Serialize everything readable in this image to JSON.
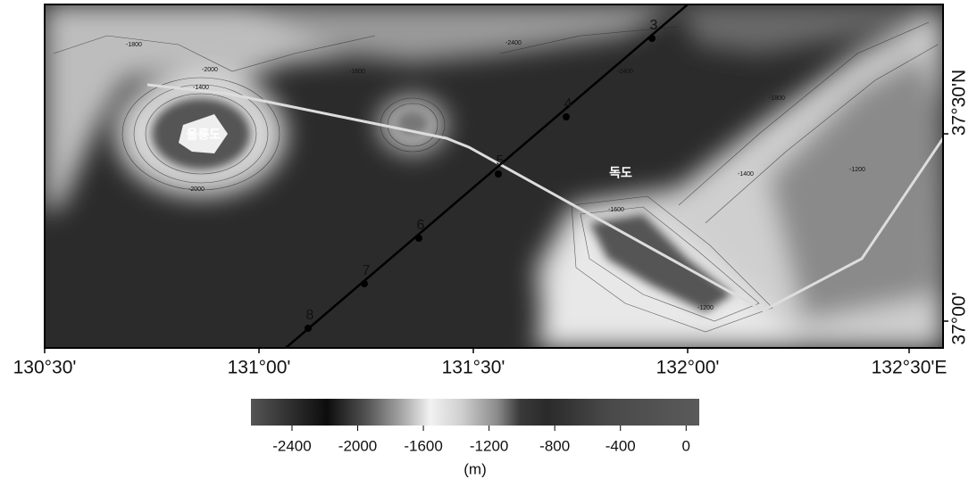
{
  "map": {
    "x_axis_labels": [
      "130°30'",
      "131°00'",
      "131°30'",
      "132°00'",
      "132°30'E"
    ],
    "y_axis_labels": [
      "37°30'N",
      "37°00'"
    ],
    "stations": [
      "3",
      "4",
      "5",
      "6",
      "7",
      "8"
    ],
    "places": [
      "울릉도",
      "독도"
    ],
    "contour_labels": [
      "-2000",
      "-1800",
      "-1400",
      "-2400",
      "-1600",
      "-2400",
      "-1800",
      "-1400",
      "-1200",
      "-1600",
      "-1200",
      "-2000"
    ],
    "colorbar": {
      "range": [
        -2650,
        80
      ],
      "ticks": [
        -2400,
        -2000,
        -1600,
        -1200,
        -800,
        -400,
        0
      ],
      "unit": "(m)"
    }
  }
}
